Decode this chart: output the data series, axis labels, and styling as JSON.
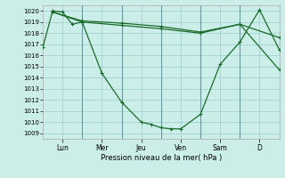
{
  "xlabel": "Pression niveau de la mer( hPa )",
  "bg_color": "#cceee8",
  "grid_color": "#99cccc",
  "line_color": "#1a6b2a",
  "ylim_min": 1008.5,
  "ylim_max": 1020.5,
  "yticks": [
    1009,
    1010,
    1011,
    1012,
    1013,
    1014,
    1015,
    1016,
    1017,
    1018,
    1019,
    1020
  ],
  "vline_positions": [
    2,
    4,
    6,
    8,
    10,
    12
  ],
  "xtick_positions": [
    1,
    3,
    5,
    7,
    9,
    11
  ],
  "xtick_labels": [
    "Lun",
    "Mer",
    "Jeu",
    "Ven",
    "Sam",
    "D"
  ],
  "xlim_min": 0,
  "xlim_max": 12,
  "line1_x": [
    0,
    0.5,
    1,
    1.5,
    2,
    3,
    4,
    5,
    5.5,
    6,
    6.5,
    7,
    8,
    9,
    10,
    11,
    12
  ],
  "line1_y": [
    1016.7,
    1020.0,
    1019.9,
    1018.8,
    1019.0,
    1014.4,
    1011.8,
    1010.0,
    1009.8,
    1009.5,
    1009.4,
    1009.4,
    1010.7,
    1015.2,
    1017.2,
    1020.1,
    1016.5
  ],
  "line2_x": [
    0.5,
    2,
    4,
    6,
    8,
    10,
    12
  ],
  "line2_y": [
    1019.9,
    1019.0,
    1018.7,
    1018.4,
    1018.0,
    1018.8,
    1014.7
  ],
  "line3_x": [
    0.5,
    2,
    4,
    6,
    8,
    10,
    12
  ],
  "line3_y": [
    1019.9,
    1019.1,
    1018.9,
    1018.6,
    1018.1,
    1018.8,
    1017.6
  ]
}
